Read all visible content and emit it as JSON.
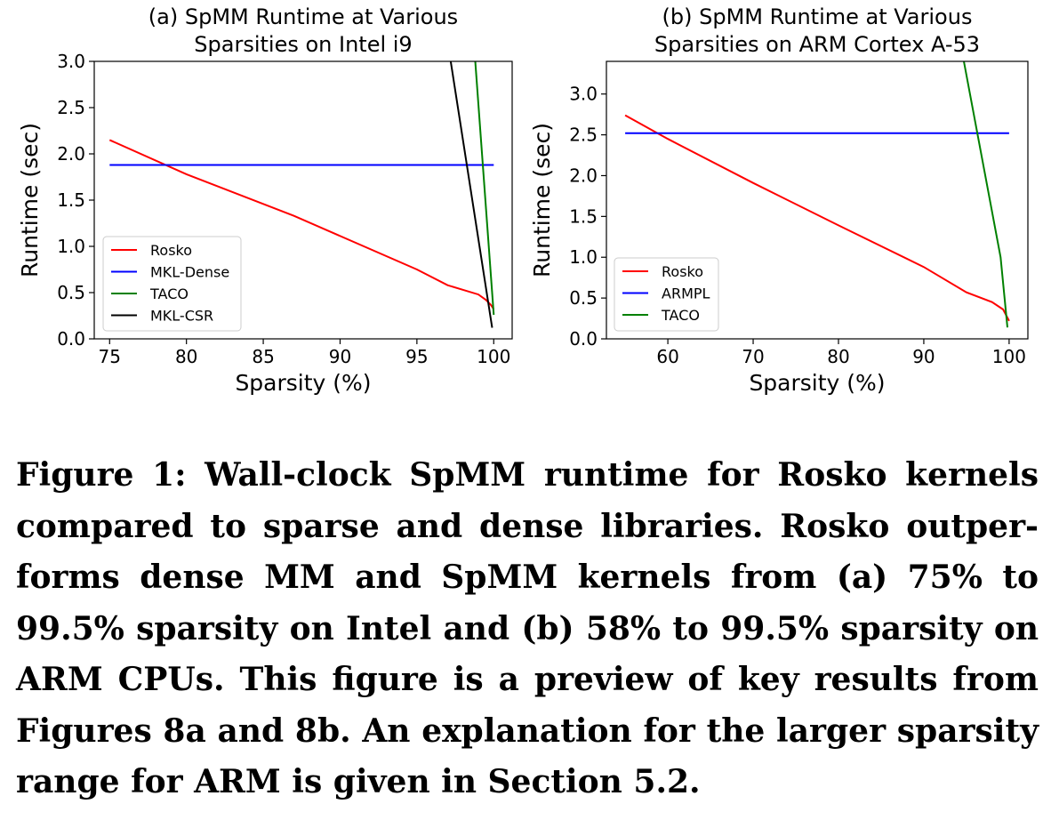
{
  "chart_data": [
    {
      "type": "line",
      "title_line1": "(a) SpMM Runtime at Various",
      "title_line2": "Sparsities on Intel i9",
      "xlabel": "Sparsity (%)",
      "ylabel": "Runtime (sec)",
      "xlim": [
        74,
        101.2
      ],
      "ylim": [
        0,
        3.0
      ],
      "xticks": [
        75,
        80,
        85,
        90,
        95,
        100
      ],
      "yticks": [
        0.0,
        0.5,
        1.0,
        1.5,
        2.0,
        2.5,
        3.0
      ],
      "xtick_labels": [
        "75",
        "80",
        "85",
        "90",
        "95",
        "100"
      ],
      "ytick_labels": [
        "0.0",
        "0.5",
        "1.0",
        "1.5",
        "2.0",
        "2.5",
        "3.0"
      ],
      "grid": false,
      "legend_position": "lower-left",
      "series": [
        {
          "name": "Rosko",
          "color": "#ff0000",
          "x": [
            75,
            80,
            87,
            95,
            97,
            99,
            99.5,
            99.8,
            100
          ],
          "y": [
            2.15,
            1.78,
            1.33,
            0.75,
            0.58,
            0.48,
            0.42,
            0.37,
            0.32
          ]
        },
        {
          "name": "MKL-Dense",
          "color": "#0000ff",
          "x": [
            75,
            100
          ],
          "y": [
            1.88,
            1.88
          ]
        },
        {
          "name": "TACO",
          "color": "#008000",
          "x": [
            98.8,
            100
          ],
          "y": [
            3.0,
            0.26
          ]
        },
        {
          "name": "MKL-CSR",
          "color": "#000000",
          "x": [
            97.2,
            99.9
          ],
          "y": [
            3.0,
            0.12
          ]
        }
      ]
    },
    {
      "type": "line",
      "title_line1": "(b) SpMM Runtime at Various",
      "title_line2": "Sparsities on ARM Cortex A-53",
      "xlabel": "Sparsity (%)",
      "ylabel": "Runtime (sec)",
      "xlim": [
        52.8,
        102.2
      ],
      "ylim": [
        0,
        3.4
      ],
      "xticks": [
        60,
        70,
        80,
        90,
        100
      ],
      "yticks": [
        0.0,
        0.5,
        1.0,
        1.5,
        2.0,
        2.5,
        3.0
      ],
      "xtick_labels": [
        "60",
        "70",
        "80",
        "90",
        "100"
      ],
      "ytick_labels": [
        "0.0",
        "0.5",
        "1.0",
        "1.5",
        "2.0",
        "2.5",
        "3.0"
      ],
      "grid": false,
      "legend_position": "lower-left",
      "series": [
        {
          "name": "Rosko",
          "color": "#ff0000",
          "x": [
            55,
            60,
            70,
            80,
            90,
            95,
            98,
            99.3,
            100
          ],
          "y": [
            2.74,
            2.45,
            1.91,
            1.39,
            0.88,
            0.57,
            0.45,
            0.36,
            0.22
          ]
        },
        {
          "name": "ARMPL",
          "color": "#0000ff",
          "x": [
            55,
            100
          ],
          "y": [
            2.52,
            2.52
          ]
        },
        {
          "name": "TACO",
          "color": "#008000",
          "x": [
            94.7,
            99,
            99.8
          ],
          "y": [
            3.4,
            1.0,
            0.14
          ]
        }
      ]
    }
  ],
  "caption": "Figure 1: Wall-clock SpMM runtime for Rosko kernels compared to sparse and dense libraries. Rosko outper­forms dense MM and SpMM kernels from (a) 75% to 99.5% sparsity on Intel and (b) 58% to 99.5% sparsity on ARM CPUs. This figure is a preview of key results from Figures 8a and 8b. An explanation for the larger sparsity range for ARM is given in Section 5.2."
}
